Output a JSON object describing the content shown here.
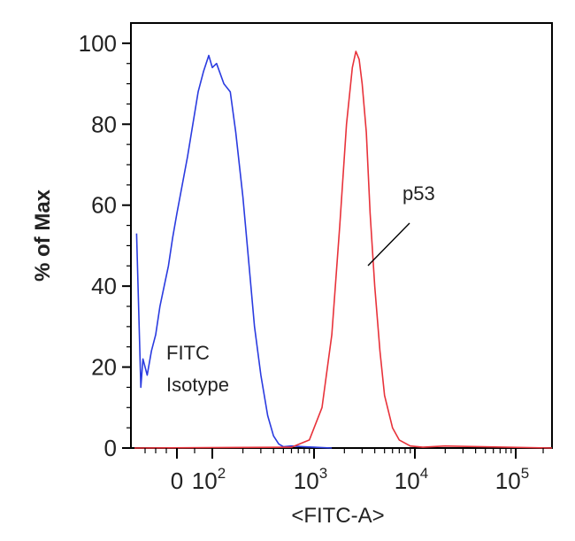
{
  "chart_data": {
    "type": "line",
    "title": "",
    "xlabel": "<FITC-A>",
    "ylabel": "% of Max",
    "x_scale": "biexponential",
    "xlim": [
      -200,
      250000
    ],
    "ylim": [
      0,
      105
    ],
    "y_ticks": [
      "0",
      "20",
      "40",
      "60",
      "80",
      "100"
    ],
    "x_ticks": [
      {
        "base": "0",
        "exp": ""
      },
      {
        "base": "10",
        "exp": "2"
      },
      {
        "base": "10",
        "exp": "3"
      },
      {
        "base": "10",
        "exp": "4"
      },
      {
        "base": "10",
        "exp": "5"
      }
    ],
    "grid": false,
    "colors": {
      "isotype": "#2a3be0",
      "p53": "#e8323a",
      "axis": "#000000"
    },
    "series": [
      {
        "name": "FITC Isotype",
        "color": "#2a3be0",
        "x": [
          -190,
          -170,
          -160,
          -140,
          -120,
          -100,
          -80,
          -60,
          -40,
          -20,
          0,
          15,
          30,
          45,
          60,
          75,
          90,
          100,
          110,
          130,
          150,
          170,
          200,
          230,
          260,
          300,
          350,
          400,
          450,
          500,
          600,
          800,
          1000,
          1500
        ],
        "y": [
          53,
          15,
          22,
          18,
          24,
          28,
          35,
          40,
          45,
          52,
          58,
          65,
          72,
          80,
          88,
          93,
          97,
          94,
          95,
          90,
          88,
          78,
          62,
          45,
          30,
          18,
          8,
          3,
          1,
          0.3,
          0.5,
          0.3,
          0.2,
          0
        ]
      },
      {
        "name": "p53",
        "color": "#e8323a",
        "x": [
          -200,
          600,
          900,
          1200,
          1500,
          1800,
          2100,
          2400,
          2600,
          2800,
          3000,
          3300,
          3600,
          4000,
          4500,
          5000,
          6000,
          7000,
          9000,
          12000,
          20000,
          250000
        ],
        "y": [
          0,
          0.2,
          2,
          10,
          28,
          55,
          80,
          94,
          98,
          96,
          90,
          78,
          58,
          40,
          24,
          13,
          5,
          2,
          0.5,
          0.2,
          0.5,
          0
        ],
        "label": "p53"
      }
    ],
    "annotations": [
      {
        "text_lines": [
          "FITC",
          "Isotype"
        ],
        "target": "isotype"
      },
      {
        "text_lines": [
          "p53"
        ],
        "target": "p53",
        "pointer": true
      }
    ]
  }
}
